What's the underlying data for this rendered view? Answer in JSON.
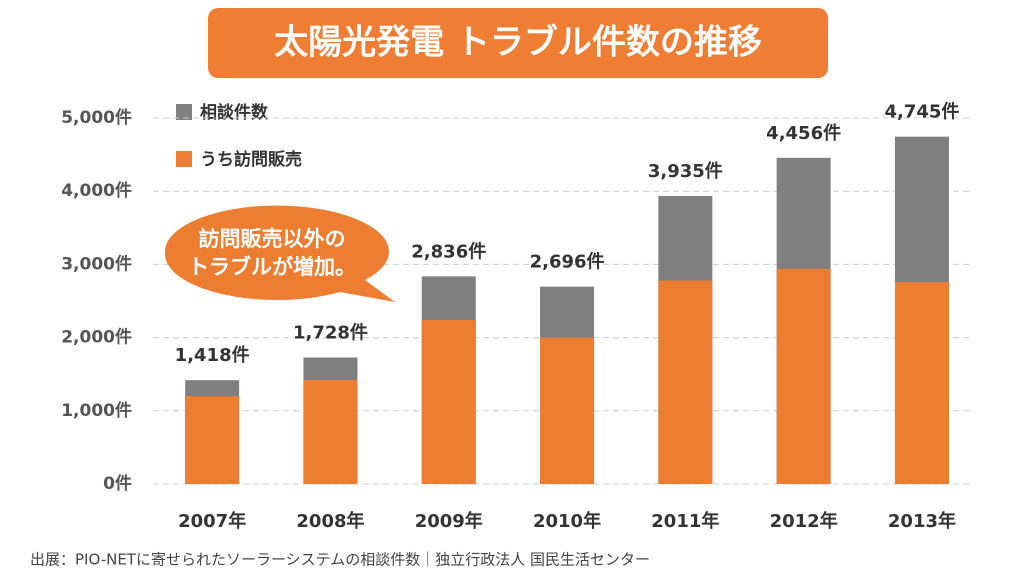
{
  "chart_data": {
    "type": "overlay_bar",
    "title": "太陽光発電 トラブル件数の推移",
    "categories": [
      "2007年",
      "2008年",
      "2009年",
      "2010年",
      "2011年",
      "2012年",
      "2013年"
    ],
    "series": [
      {
        "name": "相談件数",
        "color": "#7f7f7f",
        "values": [
          1418,
          1728,
          2836,
          2696,
          3935,
          4456,
          4745
        ],
        "value_labels": [
          "1,418件",
          "1,728件",
          "2,836件",
          "2,696件",
          "3,935件",
          "4,456件",
          "4,745件"
        ]
      },
      {
        "name": "うち訪問販売",
        "color": "#ed7d31",
        "values": [
          1200,
          1420,
          2240,
          2000,
          2780,
          2940,
          2760
        ]
      }
    ],
    "ylim": [
      0,
      5000
    ],
    "yticks": [
      {
        "value": 0,
        "label": "0件"
      },
      {
        "value": 1000,
        "label": "1,000件"
      },
      {
        "value": 2000,
        "label": "2,000件"
      },
      {
        "value": 3000,
        "label": "3,000件"
      },
      {
        "value": 4000,
        "label": "4,000件"
      },
      {
        "value": 5000,
        "label": "5,000件"
      }
    ],
    "grid": true,
    "annotation": [
      "訪問販売以外の",
      "トラブルが増加。"
    ],
    "source": "出展：PIO-NETに寄せられたソーラーシステムの相談件数｜独立行政法人 国民生活センター"
  }
}
